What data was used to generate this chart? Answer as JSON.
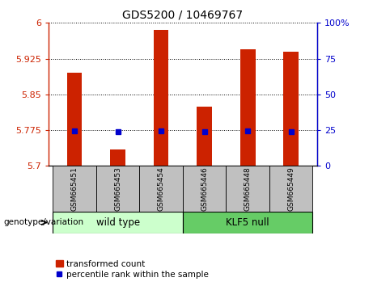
{
  "title": "GDS5200 / 10469767",
  "categories": [
    "GSM665451",
    "GSM665453",
    "GSM665454",
    "GSM665446",
    "GSM665448",
    "GSM665449"
  ],
  "red_values": [
    5.895,
    5.735,
    5.985,
    5.825,
    5.945,
    5.94
  ],
  "blue_y_values": [
    5.774,
    5.771,
    5.774,
    5.771,
    5.774,
    5.771
  ],
  "y_min": 5.7,
  "y_max": 6.0,
  "y_ticks": [
    5.7,
    5.775,
    5.85,
    5.925,
    6.0
  ],
  "y_tick_labels": [
    "5.7",
    "5.775",
    "5.85",
    "5.925",
    "6"
  ],
  "y2_ticks": [
    0,
    25,
    50,
    75,
    100
  ],
  "y2_tick_labels": [
    "0",
    "25",
    "50",
    "75",
    "100%"
  ],
  "bar_color": "#cc2200",
  "square_color": "#0000cc",
  "baseline": 5.7,
  "wild_type_label": "wild type",
  "klf5_label": "KLF5 null",
  "genotype_label": "genotype/variation",
  "legend_red": "transformed count",
  "legend_blue": "percentile rank within the sample",
  "wt_fill": "#ccffcc",
  "klf5_fill": "#66cc66",
  "gray_fill": "#c0c0c0",
  "bar_width": 0.35
}
